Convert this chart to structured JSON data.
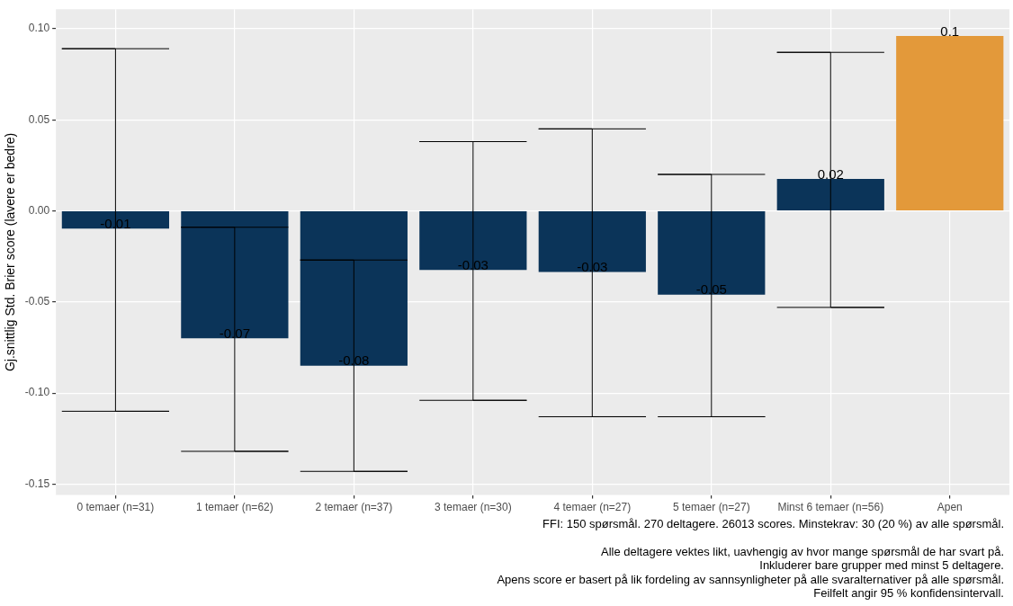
{
  "chart_data": {
    "type": "bar",
    "ylabel": "Gj.snittlig Std. Brier score (lavere er bedre)",
    "categories": [
      "0 temaer (n=31)",
      "1 temaer (n=62)",
      "2 temaer (n=37)",
      "3 temaer (n=30)",
      "4 temaer (n=27)",
      "5 temaer (n=27)",
      "Minst 6 temaer (n=56)",
      "Apen"
    ],
    "values": [
      -0.0097,
      -0.07,
      -0.085,
      -0.0325,
      -0.0335,
      -0.046,
      0.0175,
      0.096
    ],
    "colors": [
      "#0b3459",
      "#0b3459",
      "#0b3459",
      "#0b3459",
      "#0b3459",
      "#0b3459",
      "#0b3459",
      "#e3993a"
    ],
    "errors": [
      [
        -0.11,
        0.089
      ],
      [
        -0.132,
        -0.009
      ],
      [
        -0.143,
        -0.027
      ],
      [
        -0.104,
        0.038
      ],
      [
        -0.113,
        0.045
      ],
      [
        -0.113,
        0.02
      ],
      [
        -0.053,
        0.087
      ],
      null
    ],
    "value_labels": [
      "-0.01",
      "-0.07",
      "-0.08",
      "-0.03",
      "-0.03",
      "-0.05",
      "0.02",
      "0.1"
    ],
    "ylim": [
      -0.156,
      0.1107
    ],
    "yticks": [
      {
        "value": -0.15,
        "label": "-0.15"
      },
      {
        "value": -0.1,
        "label": "-0.10"
      },
      {
        "value": -0.05,
        "label": "-0.05"
      },
      {
        "value": 0,
        "label": "0.00"
      },
      {
        "value": 0.05,
        "label": "0.05"
      },
      {
        "value": 0.1,
        "label": "0.10"
      }
    ],
    "grid": true,
    "annotations": [
      "FFI: 150 spørsmål. 270 deltagere. 26013 scores. Minstekrav: 30 (20 %) av alle spørsmål.",
      "Alle deltagere vektes likt, uavhengig av hvor mange spørsmål de har svart på.",
      "Inkluderer bare grupper med minst 5 deltagere.",
      "Apens score er basert på lik fordeling av sannsynligheter på alle svaralternativer på alle spørsmål.",
      "Feilfelt angir 95 % konfidensintervall."
    ]
  }
}
